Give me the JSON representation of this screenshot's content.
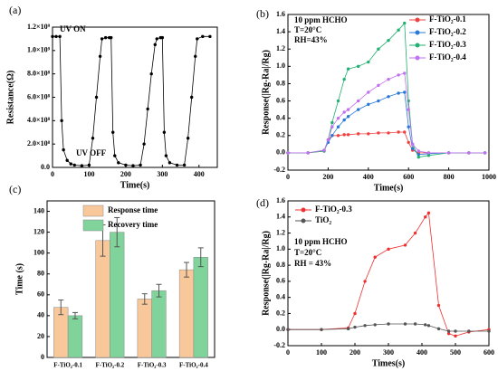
{
  "chart_data": [
    {
      "type": "line",
      "panel": "(a)",
      "xlabel": "Time(s)",
      "ylabel": "Resistance(Ω)",
      "annotations": [
        "UV ON",
        "UV OFF"
      ],
      "x": [
        0,
        10,
        20,
        25,
        30,
        40,
        50,
        60,
        80,
        100,
        110,
        120,
        130,
        135,
        145,
        155,
        160,
        165,
        170,
        180,
        200,
        220,
        240,
        250,
        260,
        270,
        280,
        285,
        295,
        300,
        305,
        310,
        320,
        340,
        360,
        370,
        380,
        390,
        395,
        410,
        430
      ],
      "series": [
        {
          "color": "#000000",
          "values": [
            1120000000,
            1120000000,
            1120000000,
            400000000,
            150000000,
            60000000,
            30000000,
            20000000,
            15000000,
            20000000,
            250000000,
            600000000,
            950000000,
            1100000000,
            1110000000,
            1110000000,
            1110000000,
            300000000,
            100000000,
            40000000,
            20000000,
            15000000,
            20000000,
            200000000,
            500000000,
            800000000,
            1050000000,
            1100000000,
            1110000000,
            1110000000,
            300000000,
            100000000,
            40000000,
            20000000,
            20000000,
            250000000,
            600000000,
            950000000,
            1100000000,
            1120000000,
            1120000000
          ]
        }
      ],
      "xlim": [
        0,
        450
      ],
      "xticks": [
        0,
        100,
        200,
        300,
        400
      ],
      "ylim": [
        0,
        1200000000
      ],
      "yticks": [
        {
          "value": 0,
          "label": "0.0"
        },
        {
          "value": 200000000,
          "label": "2.0×10⁸"
        },
        {
          "value": 400000000,
          "label": "4.0×10⁸"
        },
        {
          "value": 600000000,
          "label": "6.0×10⁸"
        },
        {
          "value": 800000000,
          "label": "8.0×10⁸"
        },
        {
          "value": 1000000000,
          "label": "1.0×10⁹"
        },
        {
          "value": 1200000000,
          "label": "1.2×10⁹"
        }
      ]
    },
    {
      "type": "line",
      "panel": "(b)",
      "xlabel": "Time(s)",
      "ylabel": "Response(|Rg-Ra|/Rg)",
      "annotations": [
        "10 ppm HCHO",
        "T=20°C",
        "RH=43%"
      ],
      "x": [
        0,
        100,
        180,
        200,
        220,
        250,
        280,
        300,
        350,
        400,
        450,
        500,
        550,
        580,
        600,
        620,
        650,
        700,
        800,
        900,
        980
      ],
      "series": [
        {
          "name": "F-TiO₂-0.1",
          "color": "#f04040",
          "values": [
            0,
            0,
            0.02,
            0.15,
            0.2,
            0.2,
            0.21,
            0.21,
            0.22,
            0.22,
            0.23,
            0.23,
            0.24,
            0.24,
            0.12,
            0.03,
            0,
            0,
            0,
            0,
            0
          ]
        },
        {
          "name": "F-TiO₂-0.2",
          "color": "#2878d8",
          "values": [
            0,
            0,
            0.03,
            0.12,
            0.2,
            0.3,
            0.38,
            0.42,
            0.5,
            0.56,
            0.6,
            0.65,
            0.69,
            0.7,
            0.3,
            0.05,
            -0.02,
            -0.01,
            0,
            0,
            0
          ]
        },
        {
          "name": "F-TiO₂-0.3",
          "color": "#20b070",
          "values": [
            0,
            0,
            0.02,
            0.15,
            0.35,
            0.6,
            0.85,
            0.97,
            1.0,
            1.05,
            1.2,
            1.3,
            1.42,
            1.5,
            0.6,
            0.1,
            -0.05,
            -0.03,
            0,
            0,
            0
          ]
        },
        {
          "name": "F-TiO₂-0.4",
          "color": "#c070f0",
          "values": [
            0,
            0,
            0.03,
            0.15,
            0.3,
            0.4,
            0.47,
            0.5,
            0.6,
            0.7,
            0.78,
            0.85,
            0.9,
            0.92,
            0.5,
            0.1,
            0.02,
            0,
            0,
            0,
            0
          ]
        }
      ],
      "xlim": [
        0,
        1000
      ],
      "xticks": [
        0,
        200,
        400,
        600,
        800,
        1000
      ],
      "ylim": [
        -0.2,
        1.6
      ],
      "yticks": [
        -0.2,
        {
          "value": 0,
          "label": "0.0"
        },
        0.2,
        0.4,
        0.6,
        0.8,
        {
          "value": 1,
          "label": "1.0"
        },
        1.2,
        1.4,
        1.6
      ]
    },
    {
      "type": "bar",
      "panel": "(c)",
      "ylabel": "Time (s)",
      "categories": [
        "F-TiO₂-0.1",
        "F-TiO₂-0.2",
        "F-TiO₂-0.3",
        "F-TiO₂-0.4"
      ],
      "series": [
        {
          "name": "Response time",
          "color": "#f9c89a",
          "values": [
            48,
            112,
            56,
            84
          ],
          "errors": [
            7,
            15,
            5,
            7
          ]
        },
        {
          "name": "Recovery time",
          "color": "#7fd39b",
          "values": [
            40,
            120,
            64,
            96
          ],
          "errors": [
            3,
            14,
            6,
            9
          ]
        }
      ],
      "ylim": [
        0,
        150
      ],
      "yticks": [
        0,
        20,
        40,
        60,
        80,
        100,
        120,
        140
      ]
    },
    {
      "type": "line",
      "panel": "(d)",
      "xlabel": "Times(s)",
      "ylabel": "Response(|Rg-Ra|/Rg)",
      "annotations": [
        "10 ppm HCHO",
        "T=20°C",
        "RH = 43%"
      ],
      "x": [
        0,
        100,
        180,
        200,
        230,
        260,
        300,
        350,
        380,
        410,
        420,
        450,
        480,
        500,
        540,
        600
      ],
      "series": [
        {
          "name": "F-TiO₂-0.3",
          "color": "#f03030",
          "values": [
            0,
            0,
            0.02,
            0.2,
            0.6,
            0.9,
            1.0,
            1.05,
            1.2,
            1.4,
            1.45,
            0.3,
            -0.05,
            -0.08,
            -0.03,
            0
          ]
        },
        {
          "name": "TiO₂",
          "color": "#555555",
          "values": [
            0,
            0,
            0.01,
            0.03,
            0.05,
            0.06,
            0.07,
            0.07,
            0.07,
            0.06,
            0.05,
            0.01,
            -0.02,
            -0.02,
            -0.02,
            -0.02
          ]
        }
      ],
      "xlim": [
        0,
        600
      ],
      "xticks": [
        0,
        100,
        200,
        300,
        400,
        500,
        600
      ],
      "ylim": [
        -0.2,
        1.6
      ],
      "yticks": [
        -0.2,
        {
          "value": 0,
          "label": "0.0"
        },
        0.2,
        0.4,
        0.6,
        0.8,
        {
          "value": 1,
          "label": "1.0"
        },
        1.2,
        1.4,
        1.6
      ]
    }
  ]
}
